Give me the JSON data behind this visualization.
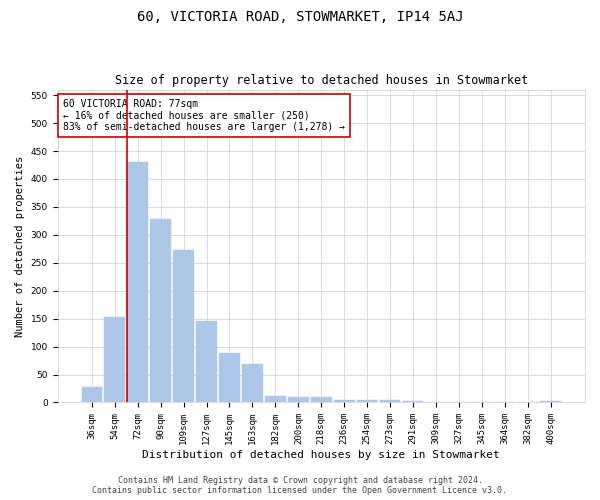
{
  "title": "60, VICTORIA ROAD, STOWMARKET, IP14 5AJ",
  "subtitle": "Size of property relative to detached houses in Stowmarket",
  "xlabel": "Distribution of detached houses by size in Stowmarket",
  "ylabel": "Number of detached properties",
  "categories": [
    "36sqm",
    "54sqm",
    "72sqm",
    "90sqm",
    "109sqm",
    "127sqm",
    "145sqm",
    "163sqm",
    "182sqm",
    "200sqm",
    "218sqm",
    "236sqm",
    "254sqm",
    "273sqm",
    "291sqm",
    "309sqm",
    "327sqm",
    "345sqm",
    "364sqm",
    "382sqm",
    "400sqm"
  ],
  "values": [
    27,
    153,
    430,
    328,
    272,
    145,
    88,
    68,
    12,
    9,
    10,
    4,
    4,
    4,
    2,
    1,
    1,
    1,
    1,
    1,
    3
  ],
  "bar_color": "#aec6e8",
  "bar_edgecolor": "#aec6e8",
  "grid_color": "#cccccc",
  "background_color": "#ffffff",
  "vline_color": "#cc0000",
  "annotation_line1": "60 VICTORIA ROAD: 77sqm",
  "annotation_line2": "← 16% of detached houses are smaller (250)",
  "annotation_line3": "83% of semi-detached houses are larger (1,278) →",
  "annotation_box_edgecolor": "#cc0000",
  "annotation_box_facecolor": "#ffffff",
  "ylim": [
    0,
    560
  ],
  "yticks": [
    0,
    50,
    100,
    150,
    200,
    250,
    300,
    350,
    400,
    450,
    500,
    550
  ],
  "footer_line1": "Contains HM Land Registry data © Crown copyright and database right 2024.",
  "footer_line2": "Contains public sector information licensed under the Open Government Licence v3.0.",
  "title_fontsize": 10,
  "subtitle_fontsize": 8.5,
  "xlabel_fontsize": 8,
  "ylabel_fontsize": 7.5,
  "tick_fontsize": 6.5,
  "annotation_fontsize": 7,
  "footer_fontsize": 6
}
